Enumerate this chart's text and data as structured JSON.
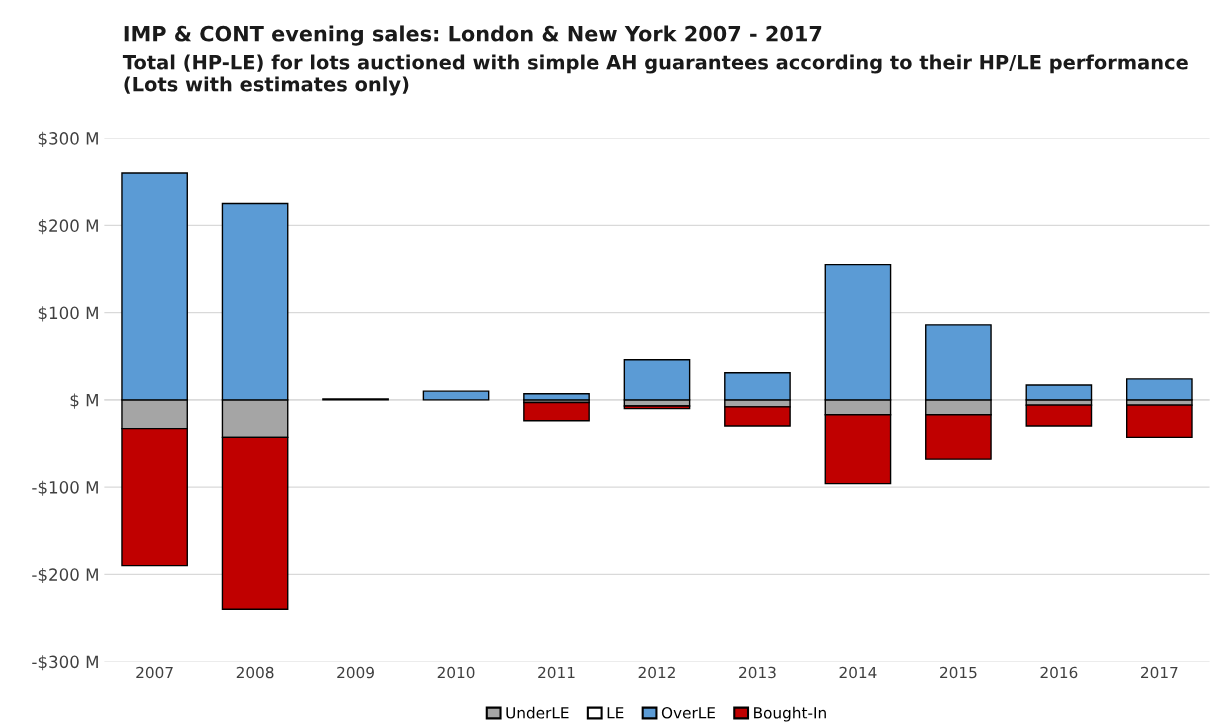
{
  "chart_data": {
    "type": "bar",
    "stacked": true,
    "title": "IMP & CONT evening sales: London & New York 2007 - 2017",
    "subtitle": "Total (HP-LE) for lots auctioned with simple AH guarantees according to their HP/LE performance (Lots with estimates only)",
    "categories": [
      "2007",
      "2008",
      "2009",
      "2010",
      "2011",
      "2012",
      "2013",
      "2014",
      "2015",
      "2016",
      "2017"
    ],
    "series": [
      {
        "name": "UnderLE",
        "color": "#a5a5a5",
        "values": [
          -33,
          -43,
          0,
          0,
          -3,
          -7,
          -8,
          -17,
          -17,
          -6,
          -6
        ]
      },
      {
        "name": "LE",
        "color": "#ffffff",
        "values": [
          0,
          0,
          0,
          0,
          0,
          0,
          0,
          0,
          0,
          0,
          0
        ]
      },
      {
        "name": "OverLE",
        "color": "#5b9bd5",
        "values": [
          260,
          225,
          1,
          10,
          7,
          46,
          31,
          155,
          86,
          17,
          24
        ]
      },
      {
        "name": "Bought-In",
        "color": "#c00000",
        "values": [
          -157,
          -197,
          0,
          0,
          -21,
          -3,
          -22,
          -79,
          -51,
          -24,
          -37
        ]
      }
    ],
    "ylim": [
      -300,
      300
    ],
    "yticks": [
      {
        "value": -300,
        "label": "-$300 M"
      },
      {
        "value": -200,
        "label": "-$200 M"
      },
      {
        "value": -100,
        "label": "-$100 M"
      },
      {
        "value": 0,
        "label": "$ M"
      },
      {
        "value": 100,
        "label": "$100 M"
      },
      {
        "value": 200,
        "label": "$200 M"
      },
      {
        "value": 300,
        "label": "$300 M"
      }
    ],
    "grid": "y",
    "legend": "bottom"
  }
}
